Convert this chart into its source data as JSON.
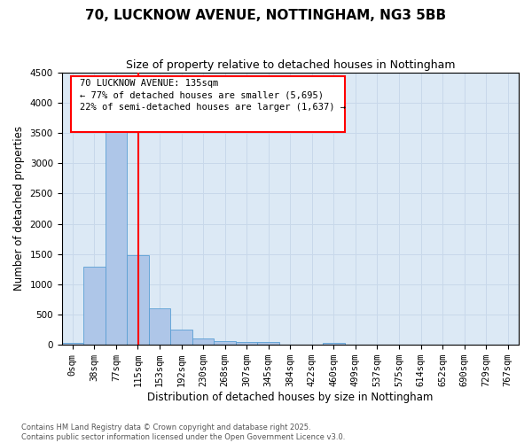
{
  "title": "70, LUCKNOW AVENUE, NOTTINGHAM, NG3 5BB",
  "subtitle": "Size of property relative to detached houses in Nottingham",
  "xlabel": "Distribution of detached houses by size in Nottingham",
  "ylabel": "Number of detached properties",
  "bar_labels": [
    "0sqm",
    "38sqm",
    "77sqm",
    "115sqm",
    "153sqm",
    "192sqm",
    "230sqm",
    "268sqm",
    "307sqm",
    "345sqm",
    "384sqm",
    "422sqm",
    "460sqm",
    "499sqm",
    "537sqm",
    "575sqm",
    "614sqm",
    "652sqm",
    "690sqm",
    "729sqm",
    "767sqm"
  ],
  "bar_values": [
    30,
    1290,
    3540,
    1480,
    600,
    245,
    110,
    65,
    40,
    40,
    0,
    0,
    35,
    0,
    0,
    0,
    0,
    0,
    0,
    0,
    0
  ],
  "bar_color": "#aec6e8",
  "bar_edge_color": "#5a9fd4",
  "property_line_color": "red",
  "annotation_text": "70 LUCKNOW AVENUE: 135sqm\n← 77% of detached houses are smaller (5,695)\n22% of semi-detached houses are larger (1,637) →",
  "ylim": [
    0,
    4500
  ],
  "yticks": [
    0,
    500,
    1000,
    1500,
    2000,
    2500,
    3000,
    3500,
    4000,
    4500
  ],
  "grid_color": "#c8d8ea",
  "background_color": "#dce9f5",
  "footer_text": "Contains HM Land Registry data © Crown copyright and database right 2025.\nContains public sector information licensed under the Open Government Licence v3.0.",
  "title_fontsize": 11,
  "subtitle_fontsize": 9,
  "axis_label_fontsize": 8.5,
  "tick_fontsize": 7.5,
  "annotation_fontsize": 7.5
}
